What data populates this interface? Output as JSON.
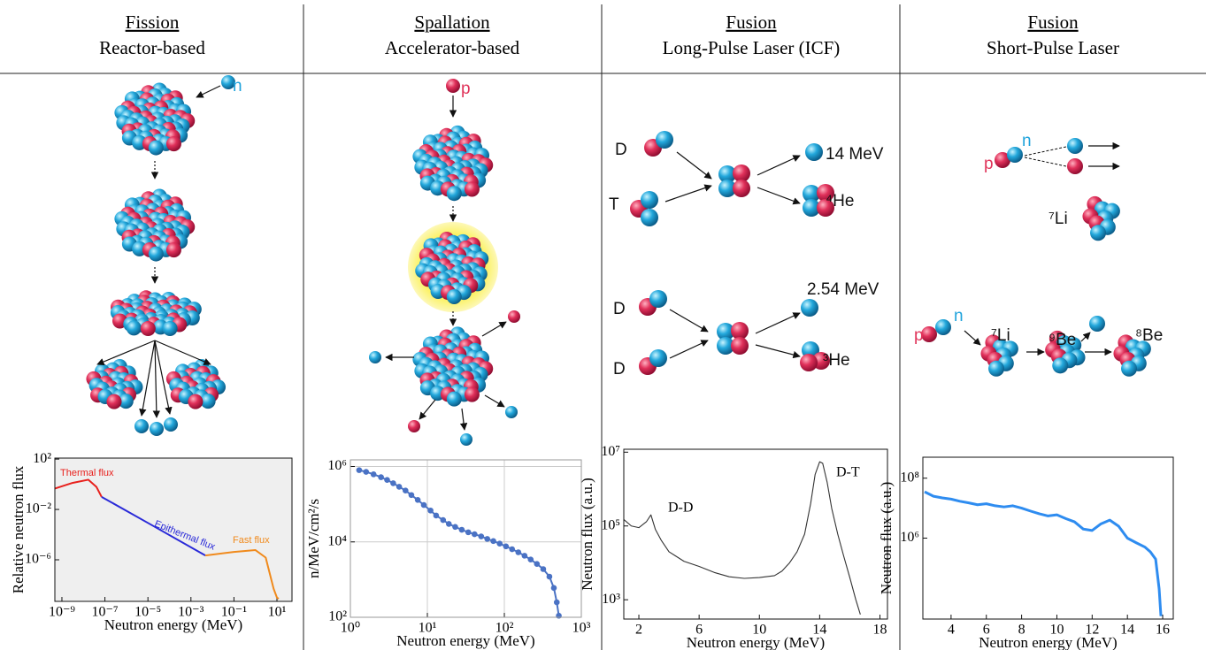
{
  "headers": [
    {
      "title": "Fission",
      "subtitle": "Reactor-based"
    },
    {
      "title": "Spallation",
      "subtitle": "Accelerator-based"
    },
    {
      "title": "Fusion",
      "subtitle": "Long-Pulse Laser (ICF)"
    },
    {
      "title": "Fusion",
      "subtitle": "Short-Pulse Laser"
    }
  ],
  "diagram_labels": [
    [
      "n"
    ],
    [
      "p"
    ],
    [
      "D",
      "T",
      "14 MeV",
      "⁴He",
      "D",
      "D",
      "2.54 MeV",
      "³He"
    ],
    [
      "p",
      "n",
      "⁷Li",
      "p",
      "n",
      "⁷Li",
      "⁹Be",
      "⁸Be"
    ]
  ],
  "chart_data": [
    {
      "type": "line",
      "xlabel": "Neutron energy (MeV)",
      "ylabel": "Relative neutron flux",
      "log_x": true,
      "log_y": true,
      "background": "#efefef",
      "xlim": [
        4.7e-10,
        50
      ],
      "ylim": [
        5e-10,
        120
      ],
      "xticks": [
        {
          "value": 1e-09,
          "label": "10⁻⁹"
        },
        {
          "value": 1e-07,
          "label": "10⁻⁷"
        },
        {
          "value": 1e-05,
          "label": "10⁻⁵"
        },
        {
          "value": 0.001,
          "label": "10⁻³"
        },
        {
          "value": 0.1,
          "label": "10⁻¹"
        },
        {
          "value": 10,
          "label": "10¹"
        }
      ],
      "yticks": [
        {
          "value": 100,
          "label": "10²"
        },
        {
          "value": 0.01,
          "label": "10⁻²"
        },
        {
          "value": 1e-06,
          "label": "10⁻⁶"
        }
      ],
      "grid": false,
      "series": [
        {
          "name": "Thermal flux",
          "color": "#e8201c",
          "x": [
            4.7e-10,
            3.2e-09,
            1.7e-08,
            4e-08,
            7e-08
          ],
          "values": [
            0.46,
            1.3,
            2.3,
            0.63,
            0.1
          ]
        },
        {
          "name": "Epithermal flux",
          "color": "#2a2ad8",
          "x": [
            7e-08,
            1e-05,
            0.0047
          ],
          "values": [
            0.1,
            0.00085,
            2.2e-06
          ]
        },
        {
          "name": "Fast flux",
          "color": "#f08a1c",
          "x": [
            0.0047,
            0.1,
            1,
            3,
            7,
            10,
            12
          ],
          "values": [
            2.2e-06,
            4.2e-06,
            5.9e-06,
            1.5e-06,
            5e-09,
            1e-09,
            8e-10
          ]
        }
      ]
    },
    {
      "type": "line",
      "xlabel": "Neutron energy (MeV)",
      "ylabel": "n/MeV/cm²/s",
      "log_x": true,
      "log_y": true,
      "markers": true,
      "xlim": [
        1,
        1000
      ],
      "ylim": [
        100,
        1500000
      ],
      "xticks": [
        {
          "value": 1,
          "label": "10⁰"
        },
        {
          "value": 10,
          "label": "10¹"
        },
        {
          "value": 100,
          "label": "10²"
        },
        {
          "value": 1000,
          "label": "10³"
        }
      ],
      "yticks": [
        {
          "value": 100,
          "label": "10²"
        },
        {
          "value": 10000,
          "label": "10⁴"
        },
        {
          "value": 1000000,
          "label": "10⁶"
        }
      ],
      "grid": true,
      "series": [
        {
          "color": "#4a72c4",
          "x": [
            1.3,
            1.6,
            2,
            2.5,
            3,
            3.6,
            4.3,
            5.2,
            6.2,
            7.5,
            9,
            11,
            13,
            16,
            19,
            23,
            28,
            34,
            41,
            50,
            60,
            72,
            87,
            105,
            126,
            152,
            183,
            220,
            265,
            320,
            385,
            440,
            480,
            510
          ],
          "values": [
            800000,
            720000,
            620000,
            520000,
            440000,
            360000,
            290000,
            230000,
            175000,
            130000,
            95000,
            68000,
            50000,
            38000,
            30000,
            25000,
            21000,
            18000,
            16000,
            14000,
            12000,
            10500,
            9000,
            7600,
            6400,
            5300,
            4300,
            3400,
            2600,
            1900,
            1200,
            600,
            250,
            110
          ]
        }
      ]
    },
    {
      "type": "line",
      "xlabel": "Neutron energy (MeV)",
      "ylabel": "Neutron flux (a.u.)",
      "log_x": false,
      "log_y": true,
      "xlim": [
        1,
        18.5
      ],
      "ylim": [
        300,
        12000000
      ],
      "xticks": [
        2,
        6,
        10,
        14,
        18
      ],
      "yticks": [
        {
          "value": 1000,
          "label": "10³"
        },
        {
          "value": 100000,
          "label": "10⁵"
        },
        {
          "value": 10000000,
          "label": "10⁷"
        }
      ],
      "grid": false,
      "annotations": [
        "D-D",
        "D-T"
      ],
      "series": [
        {
          "color": "#333333",
          "x": [
            1,
            1.5,
            2,
            2.5,
            2.8,
            3.1,
            3.5,
            4,
            5,
            6,
            7,
            8,
            9,
            10,
            11,
            11.5,
            12,
            12.5,
            13,
            13.4,
            13.7,
            14,
            14.2,
            14.5,
            14.8,
            15.2,
            15.6,
            16,
            16.4,
            16.7
          ],
          "values": [
            150000,
            100000,
            90000,
            130000,
            200000,
            80000,
            40000,
            20000,
            11000,
            8000,
            5500,
            4200,
            3800,
            4000,
            4500,
            6000,
            10000,
            20000,
            60000,
            400000,
            2500000,
            5500000,
            5000000,
            1500000,
            300000,
            60000,
            15000,
            4000,
            1000,
            400
          ]
        }
      ]
    },
    {
      "type": "line",
      "xlabel": "Neutron energy (MeV)",
      "ylabel": "Neutron flux (a.u.)",
      "log_x": false,
      "log_y": true,
      "xlim": [
        2.4,
        16.6
      ],
      "ylim": [
        2000,
        500000000
      ],
      "xticks": [
        4,
        6,
        8,
        10,
        12,
        14,
        16
      ],
      "yticks": [
        {
          "value": 1000000,
          "label": "10⁶"
        },
        {
          "value": 100000000,
          "label": "10⁸"
        }
      ],
      "grid": false,
      "series": [
        {
          "color": "#2e8cf0",
          "x": [
            2.5,
            3,
            3.5,
            4,
            4.5,
            5,
            5.5,
            6,
            6.5,
            7,
            7.5,
            8,
            8.5,
            9,
            9.5,
            10,
            10.5,
            11,
            11.5,
            12,
            12.5,
            13,
            13.5,
            14,
            14.5,
            15,
            15.3,
            15.6,
            15.8,
            15.9
          ],
          "values": [
            35000000,
            25000000,
            22000000,
            20000000,
            17000000,
            15000000,
            13000000,
            14000000,
            12000000,
            11000000,
            12000000,
            10000000,
            8000000,
            6500000,
            5500000,
            6000000,
            4500000,
            3500000,
            2000000,
            1800000,
            3000000,
            4000000,
            2500000,
            1000000,
            700000,
            500000,
            350000,
            200000,
            20000,
            2500
          ]
        }
      ]
    }
  ]
}
